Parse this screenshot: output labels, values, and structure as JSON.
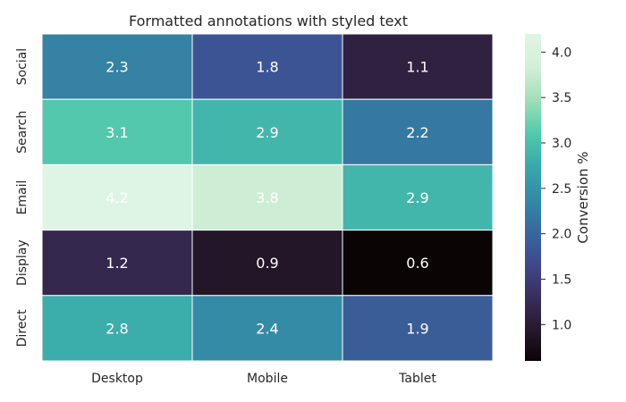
{
  "chart_data": {
    "type": "heatmap",
    "title": "Formatted annotations with styled text",
    "x_categories": [
      "Desktop",
      "Mobile",
      "Tablet"
    ],
    "y_categories": [
      "Social",
      "Search",
      "Email",
      "Display",
      "Direct"
    ],
    "values": [
      [
        2.3,
        1.8,
        1.1
      ],
      [
        3.1,
        2.9,
        2.2
      ],
      [
        4.2,
        3.8,
        2.9
      ],
      [
        1.2,
        0.9,
        0.6
      ],
      [
        2.8,
        2.4,
        1.9
      ]
    ],
    "annotation_format": "0.1f",
    "colormap": "mako",
    "colorbar": {
      "label": "Conversion %",
      "vmin": 0.6,
      "vmax": 4.2,
      "ticks": [
        1.0,
        1.5,
        2.0,
        2.5,
        3.0,
        3.5,
        4.0
      ],
      "tick_labels": [
        "1.0",
        "1.5",
        "2.0",
        "2.5",
        "3.0",
        "3.5",
        "4.0"
      ]
    },
    "annotation_color": "#ffffff"
  }
}
